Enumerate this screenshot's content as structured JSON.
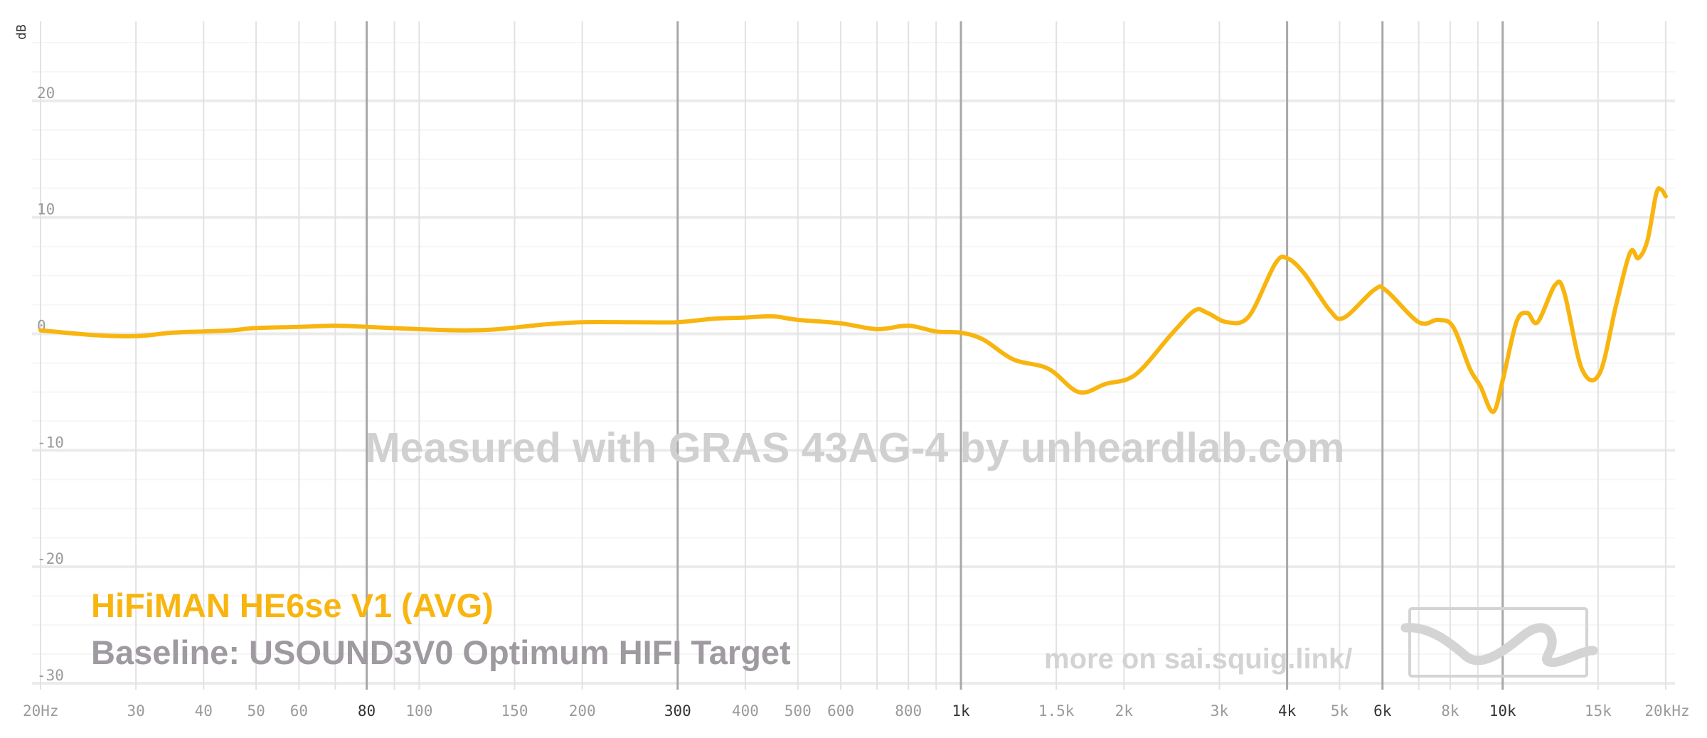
{
  "chart_data": {
    "type": "line",
    "x_scale": "log",
    "xlim": [
      20,
      20000
    ],
    "ylim": [
      -30,
      25
    ],
    "ylabel": "dB",
    "y_ticks": [
      "20",
      "10",
      "0",
      "-10",
      "-20",
      "-30"
    ],
    "x_tick_labels": [
      {
        "f": 20,
        "label": "20Hz",
        "major": false
      },
      {
        "f": 30,
        "label": "30",
        "major": false
      },
      {
        "f": 40,
        "label": "40",
        "major": false
      },
      {
        "f": 50,
        "label": "50",
        "major": false
      },
      {
        "f": 60,
        "label": "60",
        "major": false
      },
      {
        "f": 80,
        "label": "80",
        "major": true
      },
      {
        "f": 100,
        "label": "100",
        "major": false
      },
      {
        "f": 150,
        "label": "150",
        "major": false
      },
      {
        "f": 200,
        "label": "200",
        "major": false
      },
      {
        "f": 300,
        "label": "300",
        "major": true
      },
      {
        "f": 400,
        "label": "400",
        "major": false
      },
      {
        "f": 500,
        "label": "500",
        "major": false
      },
      {
        "f": 600,
        "label": "600",
        "major": false
      },
      {
        "f": 800,
        "label": "800",
        "major": false
      },
      {
        "f": 1000,
        "label": "1k",
        "major": true
      },
      {
        "f": 1500,
        "label": "1.5k",
        "major": false
      },
      {
        "f": 2000,
        "label": "2k",
        "major": false
      },
      {
        "f": 3000,
        "label": "3k",
        "major": false
      },
      {
        "f": 4000,
        "label": "4k",
        "major": true
      },
      {
        "f": 5000,
        "label": "5k",
        "major": false
      },
      {
        "f": 6000,
        "label": "6k",
        "major": true
      },
      {
        "f": 8000,
        "label": "8k",
        "major": false
      },
      {
        "f": 10000,
        "label": "10k",
        "major": true
      },
      {
        "f": 15000,
        "label": "15k",
        "major": false
      },
      {
        "f": 20000,
        "label": "20kHz",
        "major": false
      }
    ],
    "series": [
      {
        "name": "HiFiMAN HE6se V1 (AVG)",
        "color": "#f8b50f",
        "points": [
          [
            20,
            0.3
          ],
          [
            25,
            -0.1
          ],
          [
            30,
            -0.2
          ],
          [
            35,
            0.1
          ],
          [
            40,
            0.2
          ],
          [
            45,
            0.3
          ],
          [
            50,
            0.5
          ],
          [
            60,
            0.6
          ],
          [
            70,
            0.7
          ],
          [
            80,
            0.6
          ],
          [
            100,
            0.4
          ],
          [
            120,
            0.3
          ],
          [
            140,
            0.4
          ],
          [
            170,
            0.8
          ],
          [
            200,
            1.0
          ],
          [
            250,
            1.0
          ],
          [
            300,
            1.0
          ],
          [
            350,
            1.3
          ],
          [
            400,
            1.4
          ],
          [
            450,
            1.5
          ],
          [
            500,
            1.2
          ],
          [
            600,
            0.9
          ],
          [
            700,
            0.4
          ],
          [
            800,
            0.7
          ],
          [
            900,
            0.2
          ],
          [
            1000,
            0.1
          ],
          [
            1100,
            -0.5
          ],
          [
            1250,
            -2.2
          ],
          [
            1450,
            -3.0
          ],
          [
            1650,
            -5.0
          ],
          [
            1850,
            -4.3
          ],
          [
            2100,
            -3.5
          ],
          [
            2450,
            0.0
          ],
          [
            2700,
            2.0
          ],
          [
            2850,
            1.8
          ],
          [
            3100,
            1.0
          ],
          [
            3400,
            1.5
          ],
          [
            3800,
            6.0
          ],
          [
            4000,
            6.5
          ],
          [
            4300,
            5.2
          ],
          [
            4800,
            2.0
          ],
          [
            5100,
            1.4
          ],
          [
            5800,
            3.8
          ],
          [
            6100,
            3.7
          ],
          [
            7000,
            1.0
          ],
          [
            7600,
            1.2
          ],
          [
            8100,
            0.6
          ],
          [
            8700,
            -3.0
          ],
          [
            9100,
            -4.5
          ],
          [
            9600,
            -6.7
          ],
          [
            10000,
            -4.0
          ],
          [
            10600,
            1.0
          ],
          [
            11100,
            1.8
          ],
          [
            11600,
            1.0
          ],
          [
            12500,
            4.2
          ],
          [
            13000,
            3.5
          ],
          [
            14000,
            -3.0
          ],
          [
            15100,
            -3.4
          ],
          [
            16200,
            2.5
          ],
          [
            17200,
            7.0
          ],
          [
            17800,
            6.5
          ],
          [
            18500,
            8.0
          ],
          [
            19200,
            12.0
          ],
          [
            19600,
            12.4
          ],
          [
            20000,
            11.8
          ]
        ]
      }
    ],
    "baseline": "USOUND3V0 Optimum HIFI Target",
    "annotations": {
      "watermark": "Measured with GRAS 43AG-4 by unheardlab.com",
      "more_on": "more on sai.squig.link/"
    },
    "legend": {
      "title_line": "HiFiMAN HE6se V1 (AVG)",
      "baseline_line": "Baseline: USOUND3V0 Optimum HIFI Target"
    },
    "grid": true,
    "legend_position": "bottom-left"
  },
  "icons": {
    "logo": "squig-wave-logo-icon"
  }
}
